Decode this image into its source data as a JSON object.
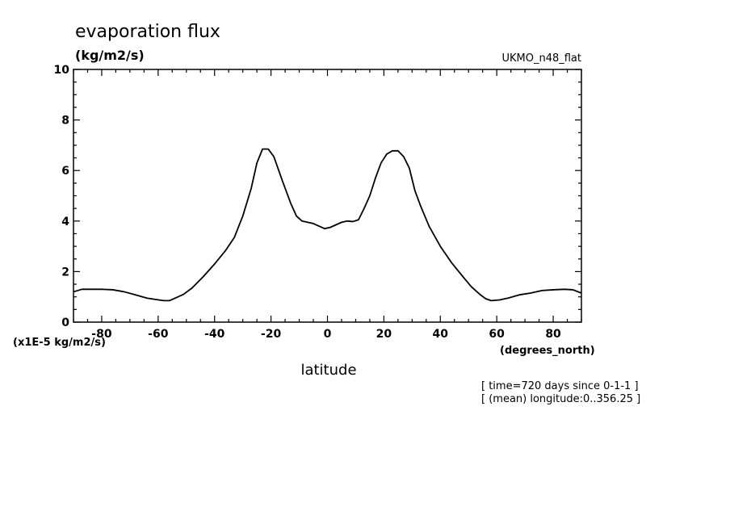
{
  "chart_data": {
    "type": "line",
    "title": "evaporation flux",
    "units_label": "(kg/m2/s)",
    "model_label": "UKMO_n48_flat",
    "scale_label": "(x1E-5 kg/m2/s)",
    "xlabel": "latitude",
    "xunits": "(degrees_north)",
    "annotations": [
      "[ time=720 days since 0-1-1 ]",
      "[ (mean) longitude:0..356.25 ]"
    ],
    "xlim": [
      -90,
      90
    ],
    "ylim": [
      0,
      10
    ],
    "xticks": [
      -80,
      -60,
      -40,
      -20,
      0,
      20,
      40,
      60,
      80
    ],
    "xtick_labels": [
      "-80",
      "-60",
      "-40",
      "-20",
      "0",
      "20",
      "40",
      "60",
      "80"
    ],
    "yticks": [
      0,
      2,
      4,
      6,
      8,
      10
    ],
    "ytick_labels": [
      "0",
      "2",
      "4",
      "6",
      "8",
      "10"
    ],
    "grid": false,
    "series": [
      {
        "x": [
          -90,
          -87,
          -84,
          -80,
          -76,
          -72,
          -68,
          -64,
          -61,
          -58,
          -56,
          -54,
          -51,
          -48,
          -44,
          -40,
          -36,
          -33,
          -30,
          -27,
          -25,
          -23,
          -21,
          -19,
          -16,
          -13,
          -11,
          -9,
          -7,
          -5,
          -3,
          -1,
          1,
          3,
          5,
          7,
          9,
          11,
          13,
          15,
          17,
          19,
          21,
          23,
          25,
          27,
          29,
          31,
          33,
          36,
          40,
          44,
          48,
          51,
          54,
          56,
          58,
          61,
          64,
          68,
          72,
          76,
          80,
          84,
          87,
          90
        ],
        "y": [
          1.2,
          1.3,
          1.3,
          1.3,
          1.28,
          1.2,
          1.08,
          0.95,
          0.9,
          0.85,
          0.85,
          0.95,
          1.1,
          1.35,
          1.8,
          2.3,
          2.85,
          3.35,
          4.2,
          5.3,
          6.3,
          6.85,
          6.85,
          6.55,
          5.6,
          4.7,
          4.2,
          4.0,
          3.95,
          3.9,
          3.8,
          3.7,
          3.75,
          3.85,
          3.95,
          4.0,
          3.98,
          4.05,
          4.5,
          5.0,
          5.7,
          6.3,
          6.65,
          6.78,
          6.78,
          6.55,
          6.1,
          5.2,
          4.6,
          3.8,
          3.0,
          2.35,
          1.8,
          1.4,
          1.1,
          0.93,
          0.85,
          0.88,
          0.95,
          1.08,
          1.15,
          1.25,
          1.28,
          1.3,
          1.28,
          1.15
        ]
      }
    ]
  }
}
